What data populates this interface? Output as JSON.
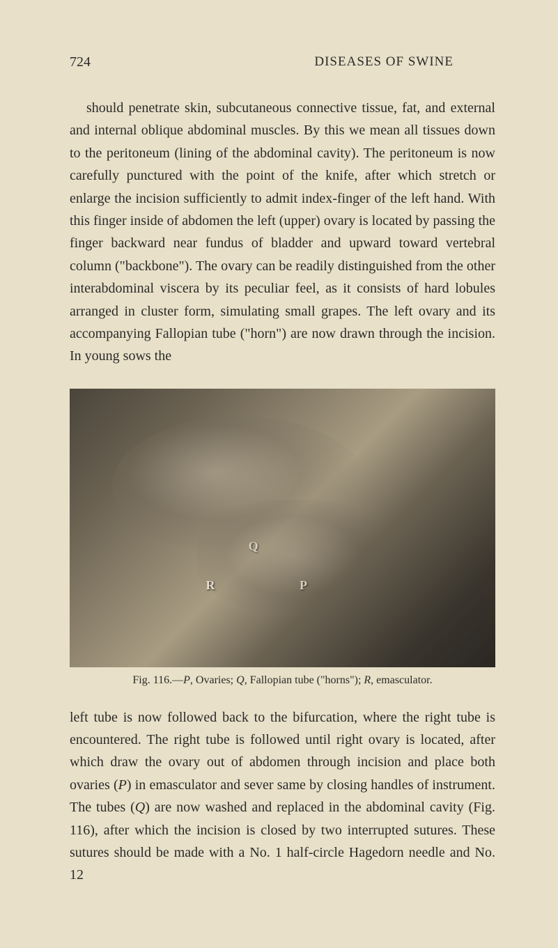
{
  "header": {
    "page_number": "724",
    "chapter_title": "DISEASES OF SWINE"
  },
  "paragraph_1": "should penetrate skin, subcutaneous connective tissue, fat, and external and internal oblique abdominal muscles. By this we mean all tissues down to the peritoneum (lining of the abdominal cavity). The peritoneum is now carefully punctured with the point of the knife, after which stretch or enlarge the incision sufficiently to admit index-finger of the left hand. With this finger inside of abdomen the left (upper) ovary is located by passing the finger backward near fundus of bladder and upward toward vertebral column (\"backbone\"). The ovary can be readily distinguished from the other interabdominal viscera by its peculiar feel, as it consists of hard lobules arranged in cluster form, simulating small grapes. The left ovary and its accompanying Fallopian tube (\"horn\") are now drawn through the incision. In young sows the",
  "figure": {
    "label_q": "Q",
    "label_r": "R",
    "label_p": "P",
    "caption_prefix": "Fig. 116.—",
    "caption_p": "P",
    "caption_p_desc": ", Ovaries; ",
    "caption_q": "Q",
    "caption_q_desc": ", Fallopian tube (\"horns\"); ",
    "caption_r": "R",
    "caption_r_desc": ", emasculator."
  },
  "paragraph_2_part1": "left tube is now followed back to the bifurcation, where the right tube is encountered. The right tube is followed until right ovary is located, after which draw the ovary out of abdomen through incision and place both ovaries (",
  "paragraph_2_p1": "P",
  "paragraph_2_part2": ") in emasculator and sever same by closing handles of instrument. The tubes (",
  "paragraph_2_q": "Q",
  "paragraph_2_part3": ") are now washed and replaced in the abdominal cavity (Fig. 116), after which the incision is closed by two interrupted sutures. These sutures should be made with a No. 1 half-circle Hagedorn needle and No. 12"
}
